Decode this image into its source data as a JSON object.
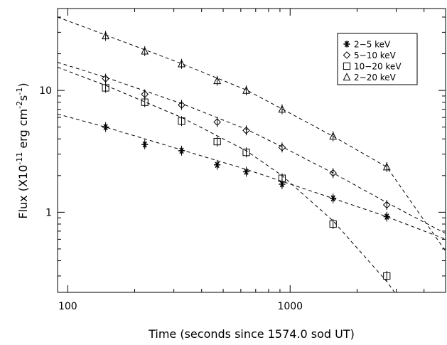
{
  "chart_data": {
    "type": "scatter",
    "title": "",
    "xlabel": "Time (seconds since 1574.0 sod UT)",
    "ylabel_parts": [
      "Flux (X10",
      "-11",
      " erg cm",
      "-2",
      "s",
      "-1",
      ")"
    ],
    "xscale": "log",
    "yscale": "log",
    "xlim": [
      90,
      5000
    ],
    "ylim": [
      0.22,
      47
    ],
    "x_ticks": [
      {
        "value": 100,
        "label": "100"
      },
      {
        "value": 1000,
        "label": "1000"
      }
    ],
    "y_ticks": [
      {
        "value": 1,
        "label": "1"
      },
      {
        "value": 10,
        "label": "10"
      }
    ],
    "grid": false,
    "legend_position": "top-right",
    "series": [
      {
        "name": "2−5 keV",
        "marker": "asterisk",
        "x": [
          148,
          222,
          325,
          470,
          635,
          920,
          1560,
          2720
        ],
        "y": [
          5.0,
          3.6,
          3.2,
          2.45,
          2.15,
          1.7,
          1.3,
          0.92
        ],
        "fit": [
          [
            90,
            6.4
          ],
          [
            148,
            5.0
          ],
          [
            325,
            3.25
          ],
          [
            635,
            2.25
          ],
          [
            1560,
            1.3
          ],
          [
            2720,
            0.92
          ],
          [
            5000,
            0.6
          ]
        ]
      },
      {
        "name": "5−10 keV",
        "marker": "diamond",
        "x": [
          148,
          222,
          325,
          470,
          635,
          920,
          1560,
          2720
        ],
        "y": [
          12.5,
          9.3,
          7.6,
          5.5,
          4.7,
          3.4,
          2.1,
          1.15
        ],
        "fit": [
          [
            90,
            17.0
          ],
          [
            148,
            12.8
          ],
          [
            325,
            7.8
          ],
          [
            635,
            4.8
          ],
          [
            920,
            3.45
          ],
          [
            1560,
            2.1
          ],
          [
            2720,
            1.2
          ],
          [
            5000,
            0.67
          ]
        ]
      },
      {
        "name": "10−20 keV",
        "marker": "square",
        "x": [
          148,
          222,
          325,
          470,
          635,
          920,
          1560,
          2720
        ],
        "y": [
          10.5,
          8.0,
          5.6,
          3.8,
          3.1,
          1.9,
          0.8,
          0.3
        ],
        "fit": [
          [
            90,
            15.5
          ],
          [
            148,
            11.0
          ],
          [
            325,
            6.0
          ],
          [
            635,
            3.2
          ],
          [
            920,
            2.0
          ],
          [
            1560,
            0.85
          ],
          [
            2720,
            0.27
          ],
          [
            2950,
            0.22
          ]
        ]
      },
      {
        "name": "2−20 keV",
        "marker": "triangle",
        "x": [
          148,
          222,
          325,
          470,
          635,
          920,
          1560,
          2720
        ],
        "y": [
          28.0,
          21.0,
          16.5,
          12.0,
          10.0,
          7.0,
          4.2,
          2.35
        ],
        "fit": [
          [
            90,
            40.0
          ],
          [
            148,
            28.5
          ],
          [
            325,
            16.6
          ],
          [
            635,
            10.1
          ],
          [
            920,
            7.05
          ],
          [
            1560,
            4.2
          ],
          [
            2720,
            2.35
          ],
          [
            5000,
            0.48
          ]
        ]
      }
    ]
  }
}
